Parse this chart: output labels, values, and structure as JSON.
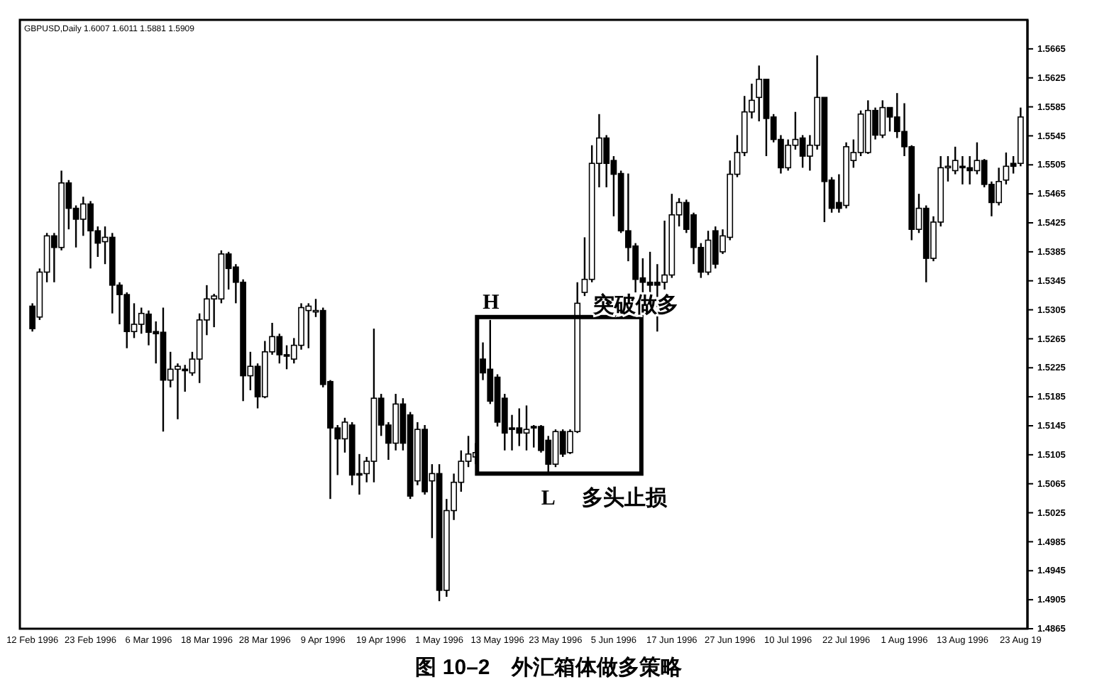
{
  "chart_data": {
    "type": "candlestick",
    "title": "图 10–2　外汇箱体做多策略",
    "categories": [
      "12 Feb 1996",
      null,
      null,
      null,
      null,
      null,
      null,
      null,
      "23 Feb 1996",
      null,
      null,
      null,
      null,
      null,
      null,
      null,
      "6 Mar 1996",
      null,
      null,
      null,
      null,
      null,
      null,
      null,
      "18 Mar 1996",
      null,
      null,
      null,
      null,
      null,
      null,
      null,
      "28 Mar 1996",
      null,
      null,
      null,
      null,
      null,
      null,
      null,
      "9 Apr 1996",
      null,
      null,
      null,
      null,
      null,
      null,
      null,
      "19 Apr 1996",
      null,
      null,
      null,
      null,
      null,
      null,
      null,
      "1 May 1996",
      null,
      null,
      null,
      null,
      null,
      null,
      null,
      "13 May 1996",
      null,
      null,
      null,
      null,
      null,
      null,
      null,
      "23 May 1996",
      null,
      null,
      null,
      null,
      null,
      null,
      null,
      "5 Jun 1996",
      null,
      null,
      null,
      null,
      null,
      null,
      null,
      "17 Jun 1996",
      null,
      null,
      null,
      null,
      null,
      null,
      null,
      "27 Jun 1996",
      null,
      null,
      null,
      null,
      null,
      null,
      null,
      "10 Jul 1996",
      null,
      null,
      null,
      null,
      null,
      null,
      null,
      "22 Jul 1996",
      null,
      null,
      null,
      null,
      null,
      null,
      null,
      "1 Aug 1996",
      null,
      null,
      null,
      null,
      null,
      null,
      null,
      "13 Aug 1996",
      null,
      null,
      null,
      null,
      null,
      null,
      null,
      "23 Aug 19"
    ],
    "ohlc": [
      [
        1.531,
        1.5314,
        1.5275,
        1.5279
      ],
      [
        1.5295,
        1.5362,
        1.5291,
        1.5357
      ],
      [
        1.5357,
        1.5411,
        1.5343,
        1.5407
      ],
      [
        1.5407,
        1.5411,
        1.5343,
        1.5391
      ],
      [
        1.5391,
        1.5497,
        1.5387,
        1.548
      ],
      [
        1.548,
        1.5484,
        1.5416,
        1.5445
      ],
      [
        1.5445,
        1.5449,
        1.5391,
        1.543
      ],
      [
        1.543,
        1.5461,
        1.5407,
        1.5451
      ],
      [
        1.5451,
        1.5455,
        1.5362,
        1.5414
      ],
      [
        1.5414,
        1.542,
        1.5378,
        1.5397
      ],
      [
        1.5399,
        1.542,
        1.5368,
        1.5405
      ],
      [
        1.5405,
        1.5411,
        1.53,
        1.5339
      ],
      [
        1.5339,
        1.5343,
        1.5285,
        1.5326
      ],
      [
        1.5326,
        1.5329,
        1.5252,
        1.5275
      ],
      [
        1.5275,
        1.5314,
        1.5266,
        1.5285
      ],
      [
        1.5285,
        1.5308,
        1.5272,
        1.53
      ],
      [
        1.5299,
        1.5304,
        1.5256,
        1.5274
      ],
      [
        1.5275,
        1.5289,
        1.5231,
        1.5272
      ],
      [
        1.5274,
        1.5308,
        1.5137,
        1.5208
      ],
      [
        1.5208,
        1.5247,
        1.5198,
        1.5223
      ],
      [
        1.5223,
        1.5231,
        1.5154,
        1.5227
      ],
      [
        1.5223,
        1.5229,
        1.5192,
        1.5221
      ],
      [
        1.5218,
        1.5247,
        1.5214,
        1.5237
      ],
      [
        1.5237,
        1.53,
        1.5204,
        1.5291
      ],
      [
        1.5291,
        1.5339,
        1.527,
        1.532
      ],
      [
        1.532,
        1.5327,
        1.5281,
        1.5324
      ],
      [
        1.532,
        1.5387,
        1.5314,
        1.5382
      ],
      [
        1.5382,
        1.5385,
        1.5333,
        1.5362
      ],
      [
        1.5364,
        1.5368,
        1.5314,
        1.5343
      ],
      [
        1.5343,
        1.5347,
        1.5179,
        1.5214
      ],
      [
        1.5214,
        1.5247,
        1.5194,
        1.5227
      ],
      [
        1.5227,
        1.5231,
        1.5169,
        1.5185
      ],
      [
        1.5185,
        1.5262,
        1.5183,
        1.5247
      ],
      [
        1.5247,
        1.5287,
        1.5243,
        1.5268
      ],
      [
        1.5268,
        1.5272,
        1.5231,
        1.5243
      ],
      [
        1.5243,
        1.5256,
        1.5223,
        1.5241
      ],
      [
        1.5237,
        1.5266,
        1.5231,
        1.5256
      ],
      [
        1.5256,
        1.5314,
        1.525,
        1.5308
      ],
      [
        1.5304,
        1.5314,
        1.5252,
        1.531
      ],
      [
        1.5304,
        1.532,
        1.5295,
        1.5304
      ],
      [
        1.5304,
        1.5308,
        1.5198,
        1.5202
      ],
      [
        1.5206,
        1.5208,
        1.5044,
        1.5142
      ],
      [
        1.5142,
        1.5146,
        1.5077,
        1.5127
      ],
      [
        1.5127,
        1.5156,
        1.5108,
        1.515
      ],
      [
        1.5146,
        1.515,
        1.5063,
        1.5077
      ],
      [
        1.5079,
        1.5106,
        1.505,
        1.5077
      ],
      [
        1.5079,
        1.5102,
        1.5067,
        1.5096
      ],
      [
        1.5096,
        1.5279,
        1.5067,
        1.5183
      ],
      [
        1.5183,
        1.5189,
        1.5131,
        1.5146
      ],
      [
        1.5146,
        1.515,
        1.5098,
        1.5121
      ],
      [
        1.5121,
        1.5189,
        1.5111,
        1.5175
      ],
      [
        1.5175,
        1.5183,
        1.5111,
        1.5121
      ],
      [
        1.516,
        1.5164,
        1.5044,
        1.5048
      ],
      [
        1.5069,
        1.515,
        1.5063,
        1.514
      ],
      [
        1.514,
        1.5146,
        1.505,
        1.5054
      ],
      [
        1.5069,
        1.5092,
        1.499,
        1.5079
      ],
      [
        1.5079,
        1.5092,
        1.4903,
        1.4918
      ],
      [
        1.4918,
        1.5044,
        1.4909,
        1.5028
      ],
      [
        1.5028,
        1.5079,
        1.5015,
        1.5067
      ],
      [
        1.5067,
        1.5111,
        1.5054,
        1.5096
      ],
      [
        1.5096,
        1.5131,
        1.5088,
        1.5106
      ],
      [
        1.5102,
        1.5121,
        1.5092,
        1.5108
      ],
      [
        1.5237,
        1.526,
        1.5208,
        1.5218
      ],
      [
        1.5223,
        1.5291,
        1.5175,
        1.5179
      ],
      [
        1.5212,
        1.5216,
        1.5144,
        1.515
      ],
      [
        1.5183,
        1.5189,
        1.5111,
        1.5135
      ],
      [
        1.5142,
        1.516,
        1.5111,
        1.514
      ],
      [
        1.5142,
        1.5169,
        1.5117,
        1.5135
      ],
      [
        1.5135,
        1.5173,
        1.5111,
        1.514
      ],
      [
        1.5144,
        1.5146,
        1.5115,
        1.5142
      ],
      [
        1.5144,
        1.5146,
        1.5108,
        1.5111
      ],
      [
        1.5125,
        1.5131,
        1.5079,
        1.5092
      ],
      [
        1.5092,
        1.514,
        1.5088,
        1.5137
      ],
      [
        1.5137,
        1.514,
        1.5102,
        1.5106
      ],
      [
        1.5108,
        1.514,
        1.5106,
        1.5137
      ],
      [
        1.5137,
        1.5343,
        1.5135,
        1.5314
      ],
      [
        1.5329,
        1.5405,
        1.5324,
        1.5347
      ],
      [
        1.5347,
        1.5532,
        1.5343,
        1.5507
      ],
      [
        1.5507,
        1.5575,
        1.5474,
        1.5542
      ],
      [
        1.5542,
        1.5546,
        1.5474,
        1.5507
      ],
      [
        1.5511,
        1.5517,
        1.5434,
        1.5492
      ],
      [
        1.5493,
        1.5497,
        1.5411,
        1.5414
      ],
      [
        1.5414,
        1.5493,
        1.5372,
        1.5391
      ],
      [
        1.5393,
        1.5397,
        1.5329,
        1.5347
      ],
      [
        1.5349,
        1.5376,
        1.5329,
        1.5343
      ],
      [
        1.5343,
        1.5385,
        1.5324,
        1.5339
      ],
      [
        1.5343,
        1.5368,
        1.5275,
        1.5339
      ],
      [
        1.5343,
        1.5428,
        1.5333,
        1.5353
      ],
      [
        1.5353,
        1.5465,
        1.5349,
        1.5436
      ],
      [
        1.5436,
        1.5459,
        1.542,
        1.5453
      ],
      [
        1.5453,
        1.5457,
        1.5411,
        1.5416
      ],
      [
        1.5436,
        1.5439,
        1.5368,
        1.5391
      ],
      [
        1.5391,
        1.5397,
        1.5349,
        1.5357
      ],
      [
        1.5357,
        1.5414,
        1.5353,
        1.5401
      ],
      [
        1.5414,
        1.542,
        1.5362,
        1.5368
      ],
      [
        1.5385,
        1.5416,
        1.5382,
        1.5407
      ],
      [
        1.5405,
        1.5511,
        1.5401,
        1.5492
      ],
      [
        1.5492,
        1.5546,
        1.5488,
        1.5522
      ],
      [
        1.5522,
        1.56,
        1.5517,
        1.5578
      ],
      [
        1.5578,
        1.5617,
        1.5569,
        1.5594
      ],
      [
        1.5598,
        1.5642,
        1.5565,
        1.5623
      ],
      [
        1.5623,
        1.5623,
        1.5517,
        1.5569
      ],
      [
        1.5571,
        1.5575,
        1.5536,
        1.554
      ],
      [
        1.554,
        1.5546,
        1.5493,
        1.5501
      ],
      [
        1.5501,
        1.554,
        1.5497,
        1.5532
      ],
      [
        1.5532,
        1.5578,
        1.5526,
        1.554
      ],
      [
        1.5542,
        1.5546,
        1.5501,
        1.5517
      ],
      [
        1.5517,
        1.5546,
        1.5497,
        1.5532
      ],
      [
        1.5532,
        1.5656,
        1.5526,
        1.5598
      ],
      [
        1.5598,
        1.5598,
        1.5426,
        1.5482
      ],
      [
        1.5484,
        1.5488,
        1.5439,
        1.5445
      ],
      [
        1.5453,
        1.5492,
        1.5439,
        1.5445
      ],
      [
        1.5449,
        1.5536,
        1.5445,
        1.553
      ],
      [
        1.5511,
        1.554,
        1.5501,
        1.5522
      ],
      [
        1.5522,
        1.558,
        1.5517,
        1.5575
      ],
      [
        1.5522,
        1.5594,
        1.552,
        1.558
      ],
      [
        1.558,
        1.5584,
        1.554,
        1.5546
      ],
      [
        1.5546,
        1.5594,
        1.5542,
        1.5584
      ],
      [
        1.5584,
        1.5584,
        1.5551,
        1.5571
      ],
      [
        1.5571,
        1.5604,
        1.5542,
        1.5551
      ],
      [
        1.5551,
        1.559,
        1.5517,
        1.553
      ],
      [
        1.553,
        1.5532,
        1.5401,
        1.5416
      ],
      [
        1.5416,
        1.5465,
        1.5411,
        1.5445
      ],
      [
        1.5445,
        1.5449,
        1.5343,
        1.5376
      ],
      [
        1.5376,
        1.5434,
        1.5372,
        1.5426
      ],
      [
        1.5426,
        1.5517,
        1.542,
        1.5501
      ],
      [
        1.5501,
        1.5517,
        1.5482,
        1.5503
      ],
      [
        1.5497,
        1.553,
        1.5492,
        1.5511
      ],
      [
        1.5503,
        1.5517,
        1.5478,
        1.5501
      ],
      [
        1.5501,
        1.5517,
        1.5478,
        1.5497
      ],
      [
        1.5497,
        1.5536,
        1.5492,
        1.5511
      ],
      [
        1.5511,
        1.5513,
        1.5474,
        1.5478
      ],
      [
        1.5478,
        1.5482,
        1.5434,
        1.5453
      ],
      [
        1.5453,
        1.5501,
        1.5449,
        1.5482
      ],
      [
        1.5484,
        1.5522,
        1.5478,
        1.5503
      ],
      [
        1.5507,
        1.5517,
        1.5493,
        1.5503
      ],
      [
        1.5507,
        1.5584,
        1.5503,
        1.5571
      ]
    ],
    "ylim": [
      1.4865,
      1.5705
    ],
    "yticks": [
      1.5665,
      1.5625,
      1.5585,
      1.5545,
      1.5505,
      1.5465,
      1.5425,
      1.5385,
      1.5345,
      1.5305,
      1.5265,
      1.5225,
      1.5185,
      1.5145,
      1.5105,
      1.5065,
      1.5025,
      1.4985,
      1.4945,
      1.4905,
      1.4865
    ],
    "annotations": [
      {
        "text": "H",
        "y": 1.5295
      },
      {
        "text": "L",
        "y": 1.5079
      },
      "突破做多",
      "多头止损",
      "GBPUSD,Daily  1.6007 1.6011 1.5881 1.5909"
    ]
  }
}
